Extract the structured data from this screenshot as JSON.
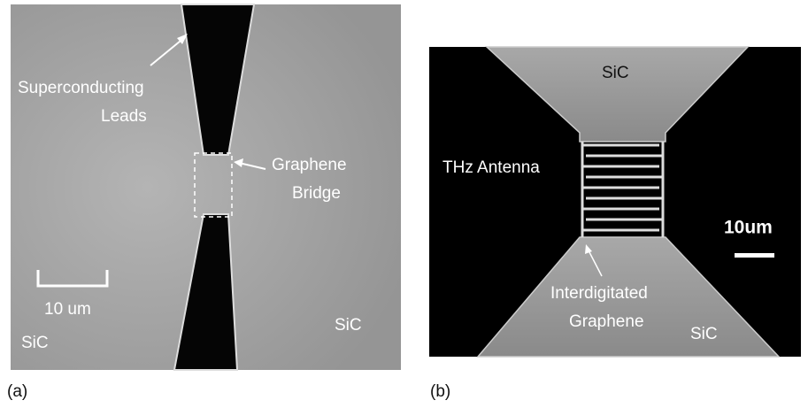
{
  "panel_a": {
    "label": "(a)",
    "leads_annotation": [
      "Superconducting",
      "Leads"
    ],
    "bridge_annotation": [
      "Graphene",
      "Bridge"
    ],
    "scale_bar": "10 um",
    "substrate_labels": [
      "SiC",
      "SiC"
    ]
  },
  "panel_b": {
    "label": "(b)",
    "substrate_labels": [
      "SiC",
      "SiC"
    ],
    "antenna_label": "THz Antenna",
    "scale_bar": "10um",
    "device_annotation": [
      "Interdigitated",
      "Graphene"
    ]
  }
}
